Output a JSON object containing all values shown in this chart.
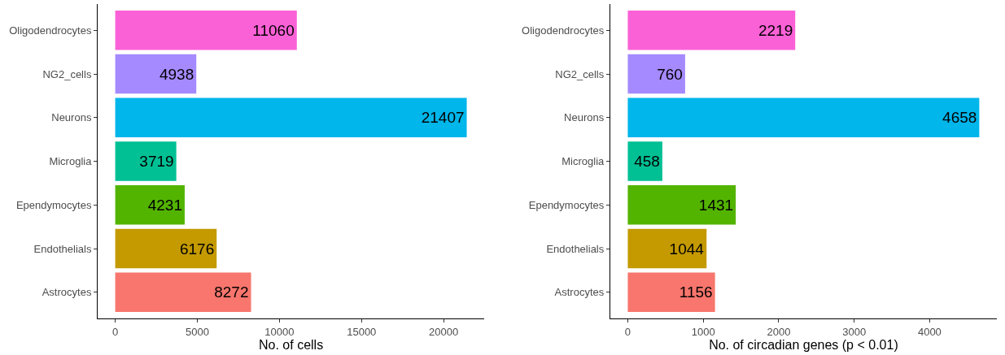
{
  "chart_data": [
    {
      "type": "bar",
      "orientation": "horizontal",
      "xlabel": "No. of cells",
      "categories": [
        "Oligodendrocytes",
        "NG2_cells",
        "Neurons",
        "Microglia",
        "Ependymocytes",
        "Endothelials",
        "Astrocytes"
      ],
      "values": [
        11060,
        4938,
        21407,
        3719,
        4231,
        6176,
        8272
      ],
      "colors": [
        "#fb61d7",
        "#a58aff",
        "#00b6eb",
        "#00c094",
        "#53b400",
        "#c49a00",
        "#f8766d"
      ],
      "xlim": [
        -1070,
        22477
      ],
      "xticks": [
        0,
        5000,
        10000,
        15000,
        20000
      ],
      "data_labels": true
    },
    {
      "type": "bar",
      "orientation": "horizontal",
      "xlabel": "No. of circadian genes (p < 0.01)",
      "categories": [
        "Oligodendrocytes",
        "NG2_cells",
        "Neurons",
        "Microglia",
        "Ependymocytes",
        "Endothelials",
        "Astrocytes"
      ],
      "values": [
        2219,
        760,
        4658,
        458,
        1431,
        1044,
        1156
      ],
      "colors": [
        "#fb61d7",
        "#a58aff",
        "#00b6eb",
        "#00c094",
        "#53b400",
        "#c49a00",
        "#f8766d"
      ],
      "xlim": [
        -233,
        4891
      ],
      "xticks": [
        0,
        1000,
        2000,
        3000,
        4000
      ],
      "data_labels": true
    }
  ]
}
